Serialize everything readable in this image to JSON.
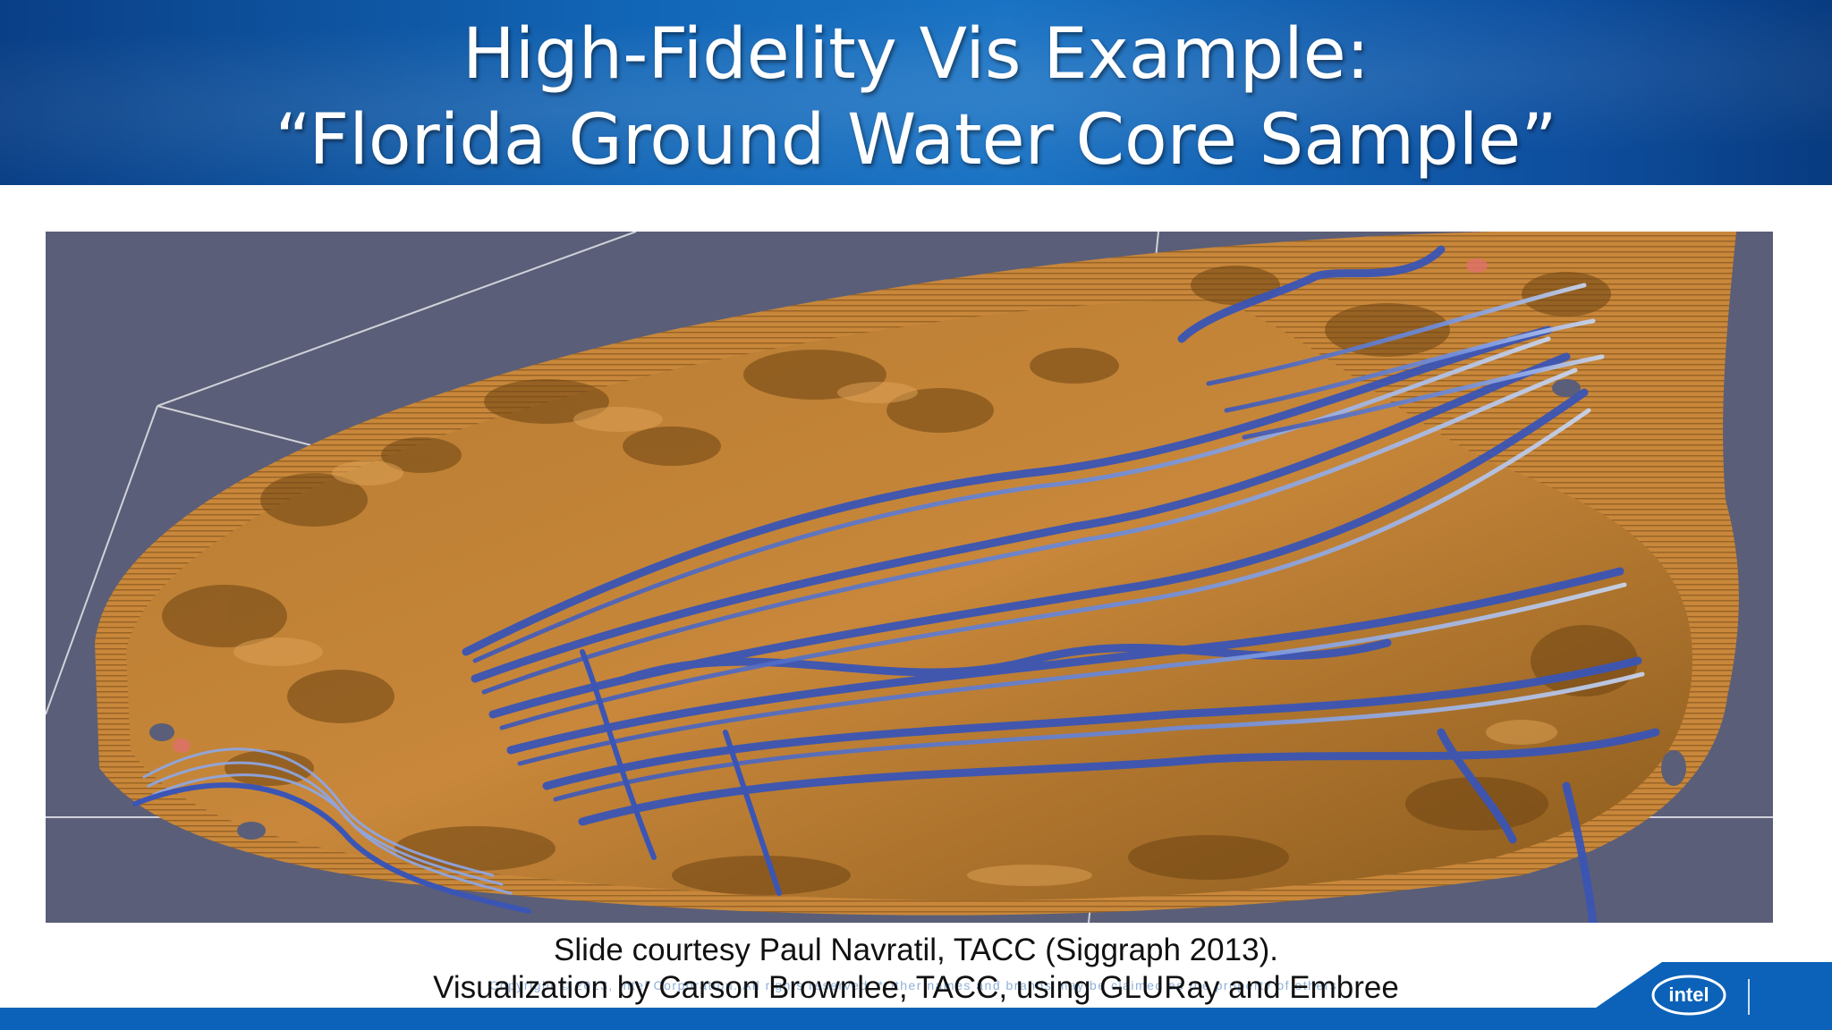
{
  "slide": {
    "title_line1": "High-Fidelity Vis Example:",
    "title_line2": "“Florida Ground Water Core Sample”",
    "caption_line1": "Slide courtesy Paul Navratil, TACC (Siggraph 2013).",
    "caption_line2": "Visualization by Carson Brownlee, TACC, using GLURay and Embree",
    "copyright": "Copyright © 2013, Intel Corporation. All rights reserved. *Other names and brands may be claimed as the property of others.",
    "logo_text": "intel"
  },
  "colors": {
    "header_blue": "#1266b7",
    "viz_background": "#5a5e78",
    "rock_orange": "#c8873a",
    "streamline_blue": "#4d6fd0",
    "footer_blue": "#0b62b8"
  },
  "icons": {
    "visualization": "core-sample-streamline-render",
    "logo": "intel-logo"
  }
}
